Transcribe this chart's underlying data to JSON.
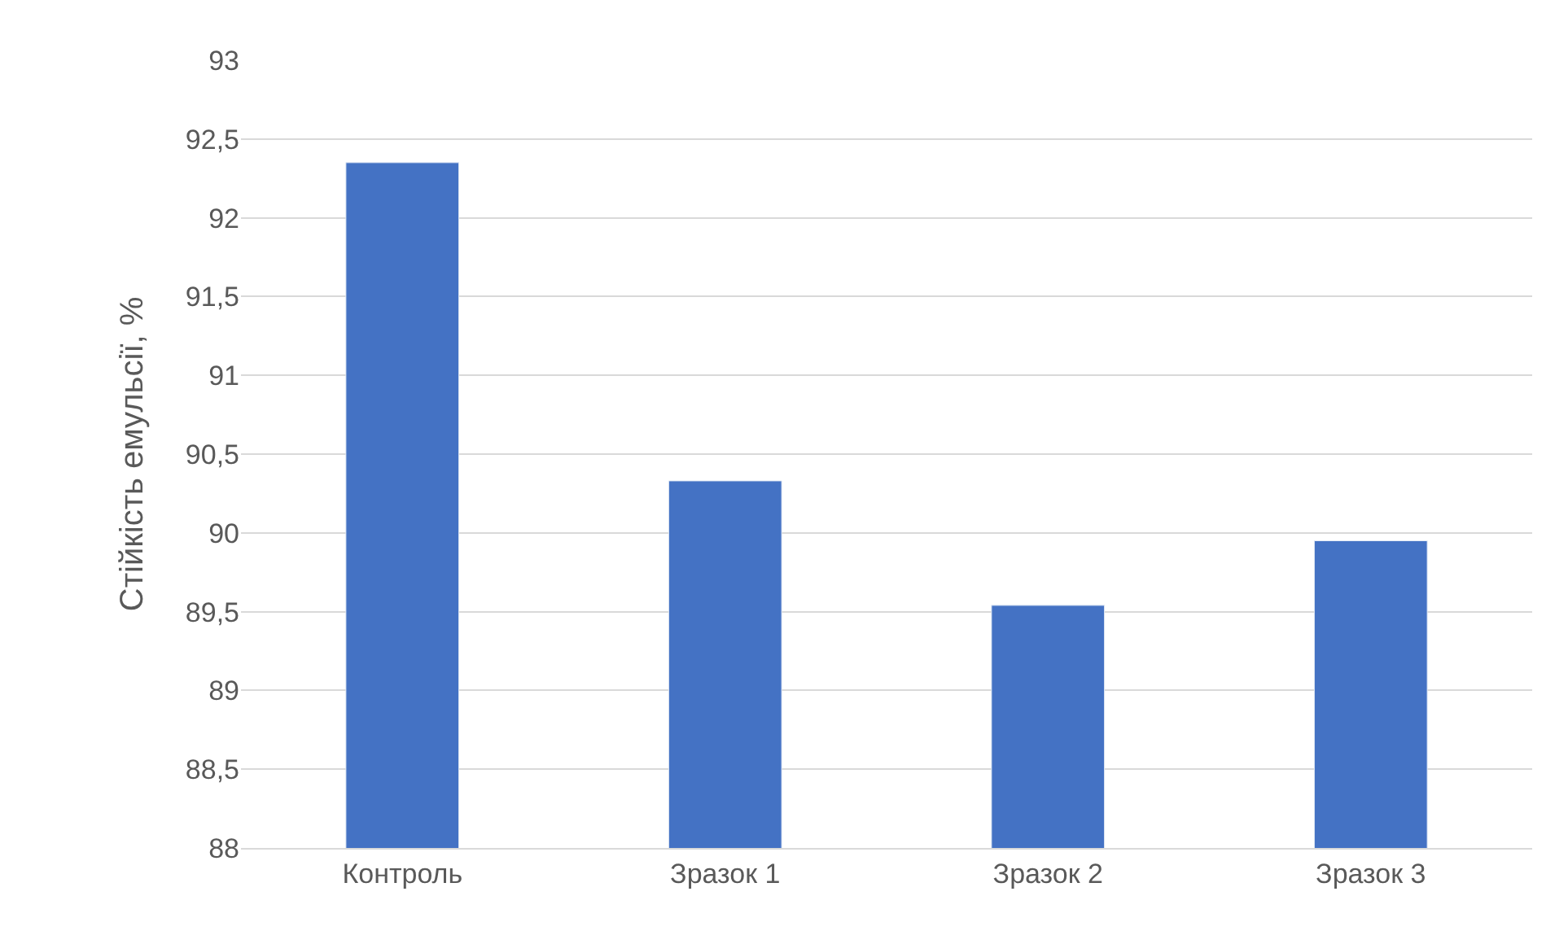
{
  "chart_data": {
    "type": "bar",
    "ylabel": "Стійкість емульсії, %",
    "categories": [
      "Контроль",
      "Зразок 1",
      "Зразок 2",
      "Зразок 3"
    ],
    "values": [
      92.35,
      90.33,
      89.54,
      89.95
    ],
    "color": "#4472c4",
    "ylim": [
      88,
      93
    ],
    "yticks": [
      88,
      {
        "value": 88.5,
        "label": "88,5"
      },
      89,
      {
        "value": 89.5,
        "label": "89,5"
      },
      90,
      {
        "value": 90.5,
        "label": "90,5"
      },
      91,
      {
        "value": 91.5,
        "label": "91,5"
      },
      92,
      {
        "value": 92.5,
        "label": "92,5"
      },
      93
    ],
    "grid": "y"
  }
}
